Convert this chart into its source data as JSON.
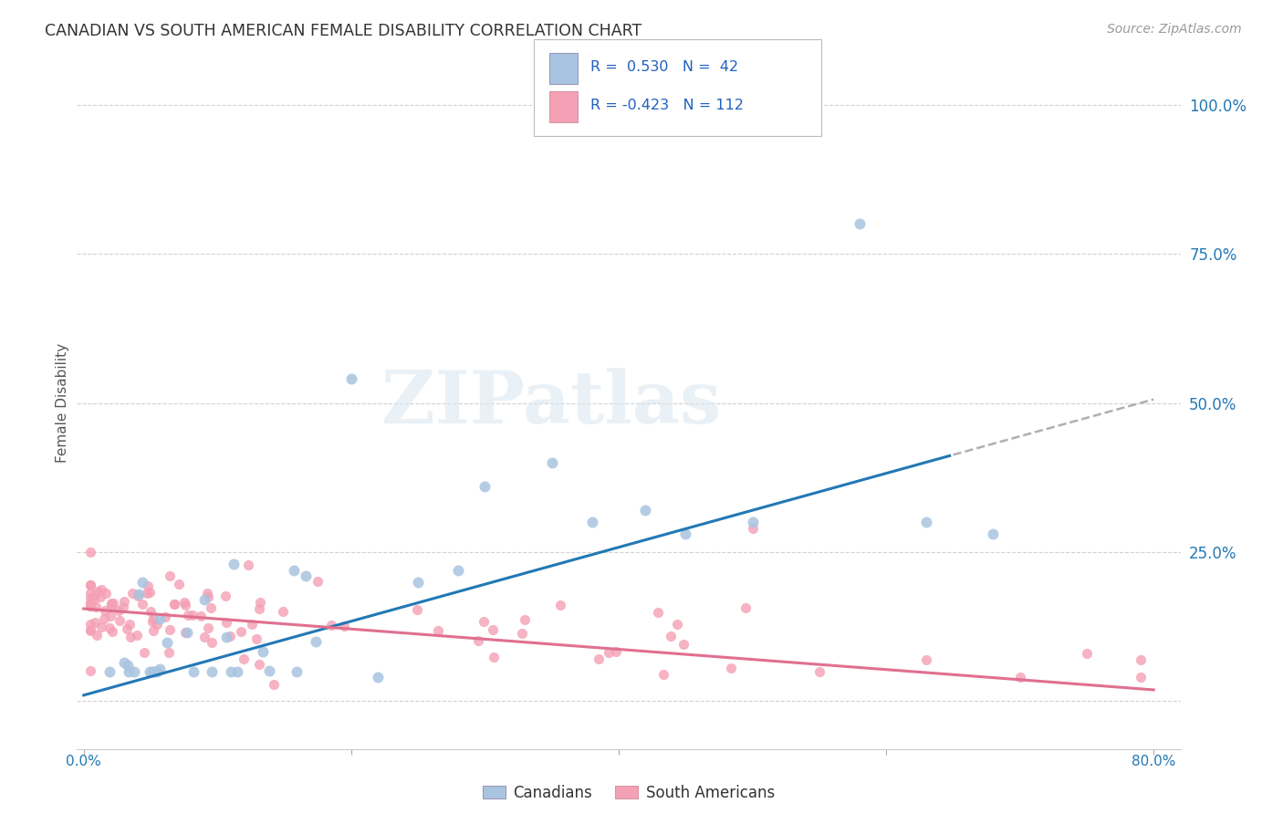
{
  "title": "CANADIAN VS SOUTH AMERICAN FEMALE DISABILITY CORRELATION CHART",
  "source": "Source: ZipAtlas.com",
  "ylabel": "Female Disability",
  "canadian_R": 0.53,
  "canadian_N": 42,
  "sa_R": -0.423,
  "sa_N": 112,
  "canadian_color": "#a8c4e0",
  "sa_color": "#f4a0b5",
  "canadian_line_color": "#2278b5",
  "sa_line_color": "#e07090",
  "canadian_line_color_ext": "#b0b0b0",
  "watermark": "ZIPatlas",
  "background_color": "#ffffff",
  "grid_color": "#cccccc",
  "legend_r_color": "#2060c0",
  "can_slope": 0.62,
  "can_intercept": 0.01,
  "sa_slope": -0.17,
  "sa_intercept": 0.155,
  "xlim_min": -0.005,
  "xlim_max": 0.82,
  "ylim_min": -0.08,
  "ylim_max": 1.08,
  "ytick_positions": [
    0.0,
    0.25,
    0.5,
    0.75,
    1.0
  ],
  "ytick_labels": [
    "",
    "25.0%",
    "50.0%",
    "75.0%",
    "100.0%"
  ]
}
